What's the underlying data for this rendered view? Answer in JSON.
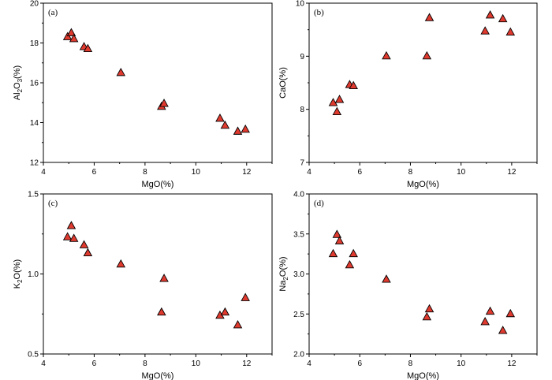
{
  "chart_data": [
    {
      "type": "scatter",
      "panel_label": "(a)",
      "xlabel": "MgO(%)",
      "ylabel": {
        "base": "Al",
        "sub1": "2",
        "mid": "O",
        "sub2": "3",
        "tail": "(%)"
      },
      "xlim": [
        4,
        13
      ],
      "ylim": [
        12,
        20
      ],
      "xticks": [
        "4",
        "6",
        "8",
        "10",
        "12"
      ],
      "yticks": [
        "12",
        "14",
        "16",
        "18",
        "20"
      ],
      "marker_color": "#e03a2f",
      "x": [
        4.95,
        5.1,
        5.2,
        5.6,
        5.75,
        7.05,
        8.65,
        8.75,
        10.95,
        11.15,
        11.65,
        11.95
      ],
      "y": [
        18.3,
        18.5,
        18.2,
        17.8,
        17.7,
        16.5,
        14.8,
        14.95,
        14.2,
        13.85,
        13.55,
        13.65
      ]
    },
    {
      "type": "scatter",
      "panel_label": "(b)",
      "xlabel": "MgO(%)",
      "ylabel": {
        "base": "CaO(%)"
      },
      "xlim": [
        4,
        13
      ],
      "ylim": [
        7,
        10
      ],
      "xticks": [
        "4",
        "6",
        "8",
        "10",
        "12"
      ],
      "yticks": [
        "7",
        "8",
        "9",
        "10"
      ],
      "marker_color": "#e03a2f",
      "x": [
        4.95,
        5.1,
        5.2,
        5.6,
        5.75,
        7.05,
        8.65,
        8.75,
        10.95,
        11.15,
        11.65,
        11.95
      ],
      "y": [
        8.12,
        7.95,
        8.18,
        8.46,
        8.44,
        9.0,
        9.0,
        9.72,
        9.47,
        9.77,
        9.7,
        9.45
      ]
    },
    {
      "type": "scatter",
      "panel_label": "(c)",
      "xlabel": "MgO(%)",
      "ylabel": {
        "base": "K",
        "sub1": "2",
        "mid": "O(%)"
      },
      "xlim": [
        4,
        13
      ],
      "ylim": [
        0.5,
        1.5
      ],
      "xticks": [
        "4",
        "6",
        "8",
        "10",
        "12"
      ],
      "yticks": [
        "0.5",
        "1.0",
        "1.5"
      ],
      "marker_color": "#e03a2f",
      "x": [
        4.95,
        5.1,
        5.2,
        5.6,
        5.75,
        7.05,
        8.65,
        8.75,
        10.95,
        11.15,
        11.65,
        11.95
      ],
      "y": [
        1.23,
        1.3,
        1.22,
        1.18,
        1.13,
        1.06,
        0.76,
        0.97,
        0.74,
        0.76,
        0.68,
        0.85
      ]
    },
    {
      "type": "scatter",
      "panel_label": "(d)",
      "xlabel": "MgO(%)",
      "ylabel": {
        "base": "Na",
        "sub1": "2",
        "mid": "O(%)"
      },
      "xlim": [
        4,
        13
      ],
      "ylim": [
        2.0,
        4.0
      ],
      "xticks": [
        "4",
        "6",
        "8",
        "10",
        "12"
      ],
      "yticks": [
        "2.0",
        "2.5",
        "3.0",
        "3.5",
        "4.0"
      ],
      "marker_color": "#e03a2f",
      "x": [
        4.95,
        5.1,
        5.2,
        5.6,
        5.75,
        7.05,
        8.65,
        8.75,
        10.95,
        11.15,
        11.65,
        11.95
      ],
      "y": [
        3.25,
        3.49,
        3.41,
        3.11,
        3.25,
        2.93,
        2.46,
        2.56,
        2.4,
        2.53,
        2.29,
        2.5
      ]
    }
  ]
}
